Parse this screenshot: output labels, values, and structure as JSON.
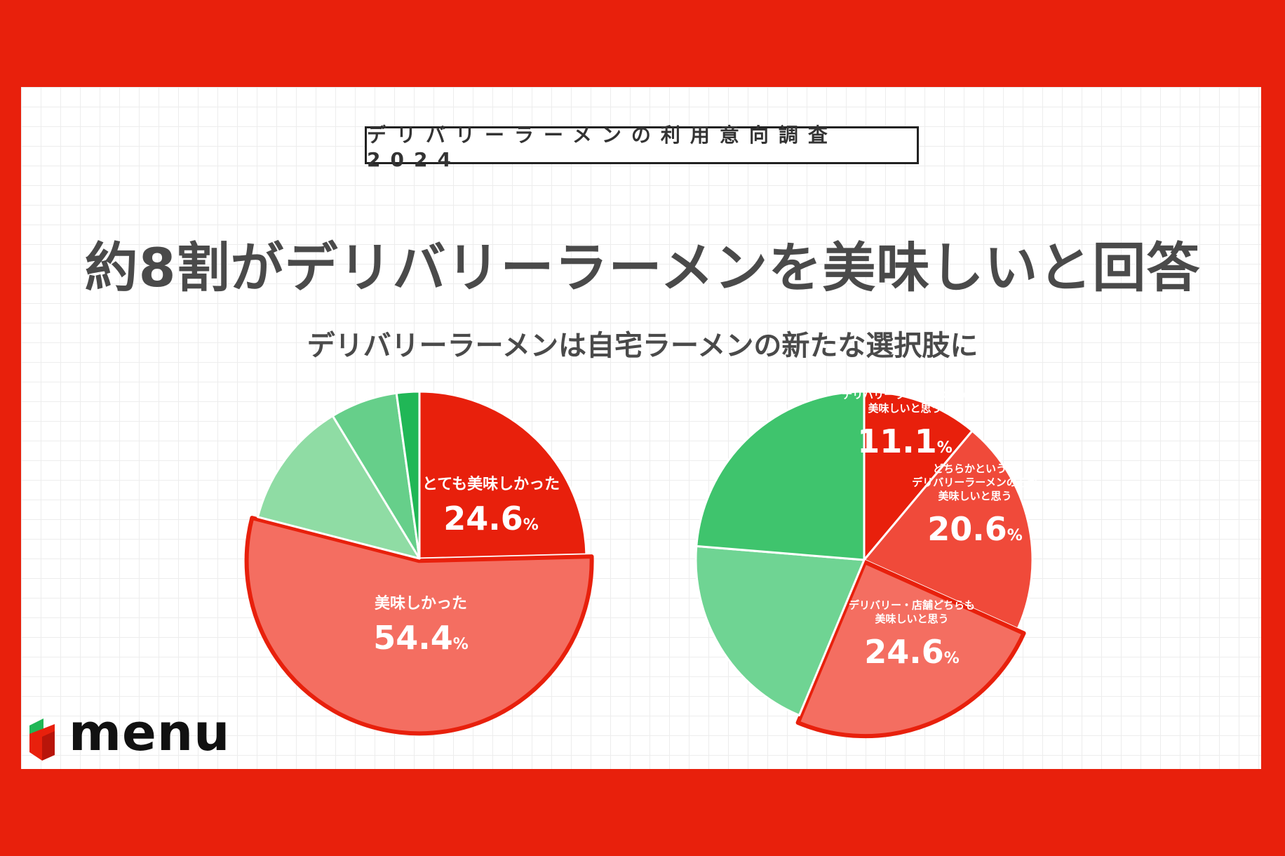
{
  "survey_label": "デリバリーラーメンの利用意向調査2024",
  "headline": "約8割がデリバリーラーメンを美味しいと回答",
  "subhead": "デリバリーラーメンは自宅ラーメンの新たな選択肢に",
  "logo_text": "menu",
  "chart_data": [
    {
      "type": "pie",
      "title": "",
      "start_angle_deg": 0,
      "direction": "clockwise",
      "slices": [
        {
          "label": "とても美味しかった",
          "value": 24.6,
          "display": "24.6",
          "unit": "%",
          "color": "#e8200c",
          "labeled": true,
          "explode": 0
        },
        {
          "label": "美味しかった",
          "value": 54.4,
          "display": "54.4",
          "unit": "%",
          "color": "#f46e61",
          "labeled": true,
          "explode": 0.014
        },
        {
          "label": "",
          "value": 12.3,
          "color": "#8fdca4",
          "labeled": false,
          "explode": 0
        },
        {
          "label": "",
          "value": 6.5,
          "color": "#66cf8a",
          "labeled": false,
          "explode": 0
        },
        {
          "label": "",
          "value": 2.2,
          "color": "#20b756",
          "labeled": false,
          "explode": 0
        }
      ]
    },
    {
      "type": "pie",
      "title": "",
      "start_angle_deg": 0,
      "direction": "clockwise",
      "slices": [
        {
          "label": "デリバリーラーメンの方が\n美味しいと思う",
          "value": 11.1,
          "display": "11.1",
          "unit": "%",
          "color": "#e8200c",
          "labeled": true,
          "explode": 0
        },
        {
          "label": "どちらかというと\nデリバリーラーメンの方が\n美味しいと思う",
          "value": 20.6,
          "display": "20.6",
          "unit": "%",
          "color": "#f04a3a",
          "labeled": true,
          "explode": 0
        },
        {
          "label": "デリバリー・店舗どちらも\n美味しいと思う",
          "value": 24.6,
          "display": "24.6",
          "unit": "%",
          "color": "#f46e61",
          "labeled": true,
          "explode": 0.014
        },
        {
          "label": "",
          "value": 20.0,
          "color": "#6fd493",
          "labeled": false,
          "explode": 0
        },
        {
          "label": "",
          "value": 23.7,
          "color": "#3fc46d",
          "labeled": false,
          "explode": 0
        }
      ]
    }
  ]
}
